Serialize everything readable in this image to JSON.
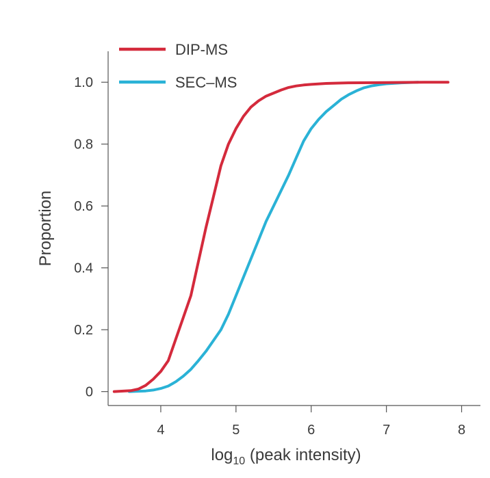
{
  "chart_data": {
    "type": "line",
    "title": "",
    "xlabel": {
      "prefix": "log",
      "subscript": "10",
      "suffix": " (peak intensity)"
    },
    "ylabel": "Proportion",
    "xlim": [
      3.3,
      8.25
    ],
    "ylim": [
      -0.045,
      1.1
    ],
    "x_ticks": [
      {
        "value": 4,
        "label": "4"
      },
      {
        "value": 5,
        "label": "5"
      },
      {
        "value": 6,
        "label": "6"
      },
      {
        "value": 7,
        "label": "7"
      },
      {
        "value": 8,
        "label": "8"
      }
    ],
    "y_ticks": [
      {
        "value": 0,
        "label": "0"
      },
      {
        "value": 0.2,
        "label": "0.2"
      },
      {
        "value": 0.4,
        "label": "0.4"
      },
      {
        "value": 0.6,
        "label": "0.6"
      },
      {
        "value": 0.8,
        "label": "0.8"
      },
      {
        "value": 1.0,
        "label": "1.0"
      }
    ],
    "grid": false,
    "legend_position": "top-left",
    "series": [
      {
        "name": "DIP-MS",
        "color": "#d42a3c",
        "x": [
          3.38,
          3.6,
          3.7,
          3.8,
          3.9,
          4.0,
          4.1,
          4.2,
          4.3,
          4.4,
          4.5,
          4.6,
          4.7,
          4.8,
          4.9,
          5.0,
          5.1,
          5.2,
          5.3,
          5.4,
          5.5,
          5.6,
          5.7,
          5.8,
          5.9,
          6.0,
          6.2,
          6.5,
          7.0,
          7.5,
          7.82
        ],
        "y": [
          0.0,
          0.003,
          0.008,
          0.02,
          0.04,
          0.065,
          0.1,
          0.17,
          0.24,
          0.31,
          0.42,
          0.53,
          0.63,
          0.73,
          0.8,
          0.85,
          0.89,
          0.92,
          0.94,
          0.955,
          0.965,
          0.975,
          0.983,
          0.988,
          0.991,
          0.993,
          0.996,
          0.998,
          0.999,
          1.0,
          1.0
        ]
      },
      {
        "name": "SEC–MS",
        "color": "#2ab2d6",
        "x": [
          3.58,
          3.8,
          3.9,
          4.0,
          4.1,
          4.2,
          4.3,
          4.4,
          4.5,
          4.6,
          4.7,
          4.8,
          4.9,
          5.0,
          5.1,
          5.2,
          5.3,
          5.4,
          5.5,
          5.6,
          5.7,
          5.8,
          5.9,
          6.0,
          6.1,
          6.2,
          6.3,
          6.4,
          6.5,
          6.6,
          6.7,
          6.8,
          6.9,
          7.0,
          7.2,
          7.42
        ],
        "y": [
          0.0,
          0.002,
          0.005,
          0.01,
          0.018,
          0.032,
          0.05,
          0.072,
          0.1,
          0.13,
          0.165,
          0.2,
          0.25,
          0.31,
          0.37,
          0.43,
          0.49,
          0.55,
          0.6,
          0.65,
          0.7,
          0.755,
          0.81,
          0.85,
          0.88,
          0.905,
          0.925,
          0.945,
          0.96,
          0.972,
          0.982,
          0.988,
          0.992,
          0.995,
          0.998,
          1.0
        ]
      }
    ]
  }
}
